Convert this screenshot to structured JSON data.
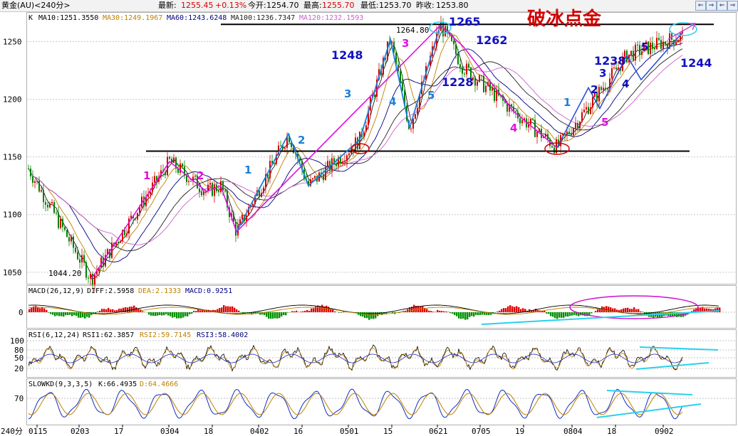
{
  "header": {
    "title": "黄金(AU)<240分>",
    "latest_label": "最新:",
    "latest_value": "1255.45",
    "change": "+0.13%",
    "open_label": "今开:",
    "open_value": "1254.70",
    "high_label": "最高:",
    "high_value": "1255.70",
    "low_label": "最低:",
    "low_value": "1253.70",
    "prev_label": "昨收:",
    "prev_value": "1253.80",
    "buttons": [
      "⇐",
      "⇒",
      "⇐",
      "⇒"
    ]
  },
  "main_legend": {
    "k": "K",
    "ma10": "MA10:1251.3550",
    "ma30": "MA30:1249.1967",
    "ma60": "MA60:1243.6248",
    "ma100": "MA100:1236.7347",
    "ma120": "MA120:1232.1593",
    "colors": {
      "ma10": "#000000",
      "ma30": "#c08000",
      "ma60": "#000080",
      "ma100": "#202020",
      "ma120": "#d060d0"
    }
  },
  "macd_legend": {
    "name": "MACD(26,12,9)",
    "diff": "DIFF:2.5958",
    "dea": "DEA:2.1333",
    "macd": "MACD:0.9251"
  },
  "rsi_legend": {
    "name": "RSI(6,12,24)",
    "rsi1": "RSI1:62.3857",
    "rsi2": "RSI2:59.7145",
    "rsi3": "RSI3:58.4002"
  },
  "kd_legend": {
    "name": "SLOWKD(9,3,3,5)",
    "k": "K:66.4935",
    "d": "D:64.4666"
  },
  "x_axis": {
    "corner_label": "240分",
    "ticks": [
      "0115",
      "0203",
      "17",
      "0304",
      "18",
      "0402",
      "16",
      "0501",
      "15",
      "0621",
      "0705",
      "19",
      "0804",
      "18",
      "0902"
    ]
  },
  "chart_data": {
    "type": "candlestick",
    "y_ticks": [
      1050,
      1100,
      1150,
      1200,
      1250
    ],
    "ylim": [
      1040,
      1275
    ],
    "price_labels": [
      "1044.20",
      "1264.80"
    ],
    "support_level": 1155,
    "resistance_level": 1265,
    "key_points": [
      {
        "date": "0115",
        "price": 1140
      },
      {
        "date": "0203",
        "price": 1044.2
      },
      {
        "date": "17",
        "price": 1146
      },
      {
        "date": "0304",
        "price": 1120
      },
      {
        "date": "18",
        "price": 1125
      },
      {
        "date": "0402",
        "price": 1085
      },
      {
        "date": "16",
        "price": 1170
      },
      {
        "date": "16b",
        "price": 1125
      },
      {
        "date": "0501",
        "price": 1165
      },
      {
        "date": "15",
        "price": 1252
      },
      {
        "date": "15b",
        "price": 1175
      },
      {
        "date": "0621",
        "price": 1264.8
      },
      {
        "date": "0705",
        "price": 1228
      },
      {
        "date": "19",
        "price": 1190
      },
      {
        "date": "0804",
        "price": 1158
      },
      {
        "date": "18b",
        "price": 1238
      },
      {
        "date": "0902",
        "price": 1255.45
      }
    ],
    "indicators": {
      "macd_ytick": "0",
      "rsi_yticks": [
        "100",
        "80",
        "50",
        "20"
      ],
      "kd_ytick": "70"
    },
    "annotations": {
      "title": "破冰点金",
      "levels": [
        "1265",
        "1262",
        "1248",
        "1228",
        "1238",
        "1244"
      ],
      "wave_numbers": [
        "1",
        "2",
        "1",
        "2",
        "3",
        "4",
        "5",
        "3",
        "1",
        "2",
        "3",
        "4",
        "5",
        "4",
        "5"
      ]
    },
    "colors": {
      "up": "#d40000",
      "down": "#008000",
      "zigzag_magenta": "#e010e0",
      "zigzag_blue": "#1a7fd8",
      "cyan": "#2ad0f0",
      "annotation_blue": "#1010c0"
    }
  }
}
